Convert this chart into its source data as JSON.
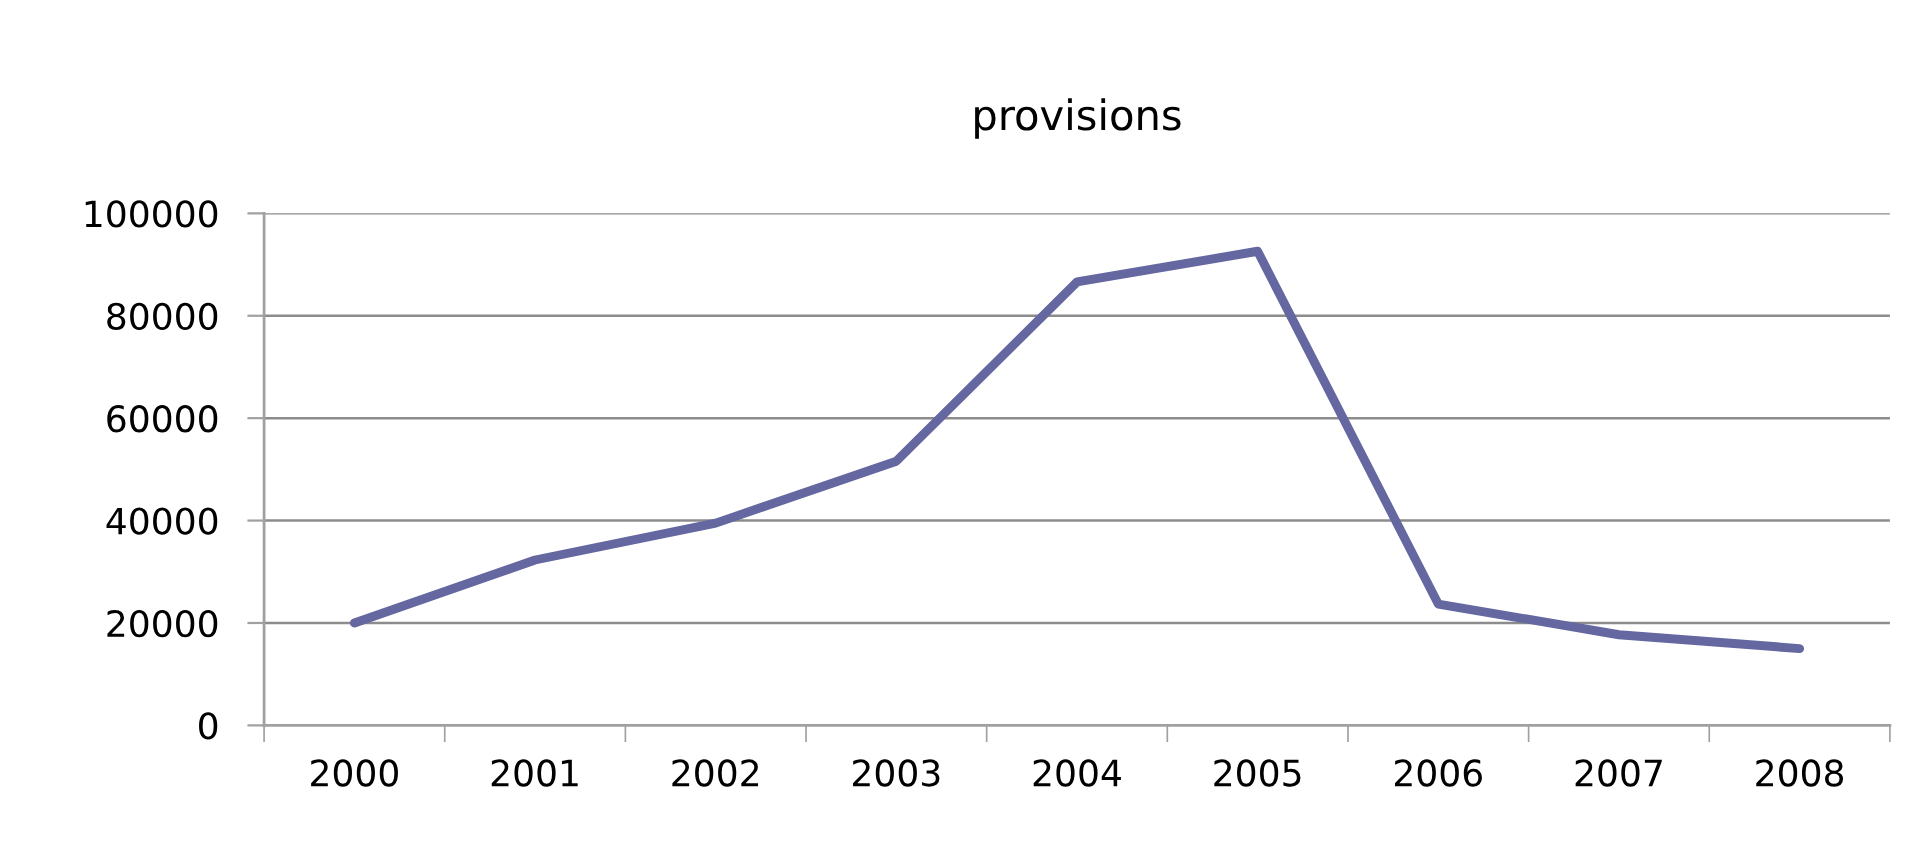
{
  "chart_data": {
    "type": "line",
    "title": "provisions",
    "categories": [
      "2000",
      "2001",
      "2002",
      "2003",
      "2004",
      "2005",
      "2006",
      "2007",
      "2008"
    ],
    "series": [
      {
        "color": "#6467a0",
        "values": [
          20000,
          32300,
          39500,
          51600,
          86600,
          92600,
          23700,
          17700,
          15000
        ]
      }
    ],
    "ylim": [
      0,
      100000
    ],
    "yticks": [
      0,
      20000,
      40000,
      60000,
      80000,
      100000
    ],
    "grid": "y"
  }
}
